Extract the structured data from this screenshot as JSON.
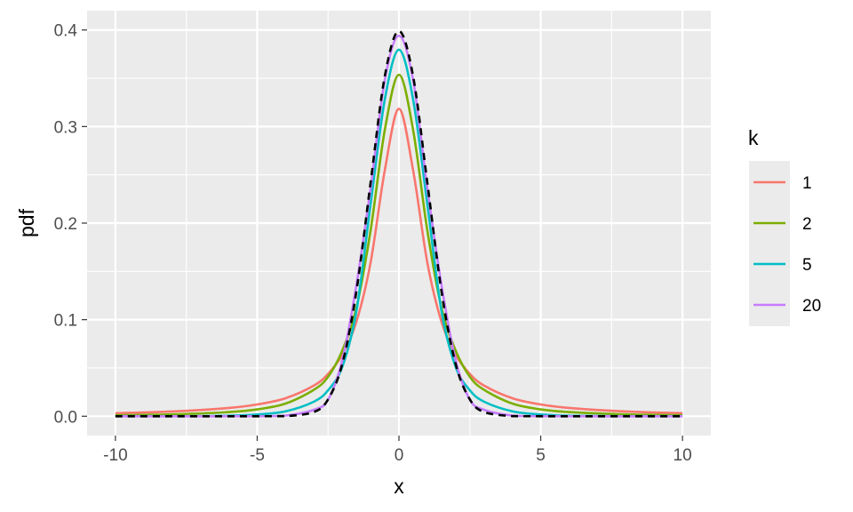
{
  "chart_data": {
    "type": "line",
    "xlabel": "x",
    "ylabel": "pdf",
    "xlim": [
      -11,
      11
    ],
    "ylim": [
      -0.02,
      0.42
    ],
    "x_ticks": [
      -10,
      -5,
      0,
      5,
      10
    ],
    "x_tick_labels": [
      "-10",
      "-5",
      "0",
      "5",
      "10"
    ],
    "y_ticks": [
      0.0,
      0.1,
      0.2,
      0.3,
      0.4
    ],
    "y_tick_labels": [
      "0.0",
      "0.1",
      "0.2",
      "0.3",
      "0.4"
    ],
    "grid": true,
    "legend": {
      "title": "k",
      "position": "right"
    },
    "x": [
      -10,
      -8,
      -6,
      -5,
      -4,
      -3,
      -2.5,
      -2,
      -1.5,
      -1,
      -0.5,
      0,
      0.5,
      1,
      1.5,
      2,
      2.5,
      3,
      4,
      5,
      6,
      8,
      10
    ],
    "series": [
      {
        "name": "1",
        "color": "#F8766D",
        "values": [
          0.0032,
          0.0049,
          0.0086,
          0.0122,
          0.0187,
          0.0318,
          0.0439,
          0.0637,
          0.0979,
          0.1592,
          0.2546,
          0.3183,
          0.2546,
          0.1592,
          0.0979,
          0.0637,
          0.0439,
          0.0318,
          0.0187,
          0.0122,
          0.0086,
          0.0049,
          0.0032
        ]
      },
      {
        "name": "2",
        "color": "#7CAE00",
        "values": [
          0.001,
          0.0019,
          0.0043,
          0.0071,
          0.0131,
          0.0274,
          0.0409,
          0.068,
          0.1125,
          0.1925,
          0.2963,
          0.3536,
          0.2963,
          0.1925,
          0.1125,
          0.068,
          0.0409,
          0.0274,
          0.0131,
          0.0071,
          0.0043,
          0.0019,
          0.001
        ]
      },
      {
        "name": "5",
        "color": "#00BFC4",
        "values": [
          4e-05,
          0.0001,
          0.0005,
          0.0018,
          0.0051,
          0.0151,
          0.0269,
          0.051,
          0.109,
          0.2197,
          0.3279,
          0.3796,
          0.3279,
          0.2197,
          0.109,
          0.051,
          0.0269,
          0.0151,
          0.0051,
          0.0018,
          0.0005,
          0.0001,
          4e-05
        ]
      },
      {
        "name": "20",
        "color": "#C77CFF",
        "values": [
          0.0,
          0.0,
          2e-05,
          0.0001,
          0.0007,
          0.0067,
          0.0172,
          0.058,
          0.136,
          0.236,
          0.348,
          0.394,
          0.348,
          0.236,
          0.136,
          0.058,
          0.0172,
          0.0067,
          0.0007,
          0.0001,
          2e-05,
          0.0,
          0.0
        ]
      }
    ],
    "reference": {
      "style": "dashed",
      "color": "#000000",
      "values": [
        0.0,
        0.0,
        0.0,
        1e-06,
        0.0001,
        0.0044,
        0.0175,
        0.054,
        0.1295,
        0.242,
        0.3521,
        0.3989,
        0.3521,
        0.242,
        0.1295,
        0.054,
        0.0175,
        0.0044,
        0.0001,
        1e-06,
        0.0,
        0.0,
        0.0
      ]
    }
  }
}
